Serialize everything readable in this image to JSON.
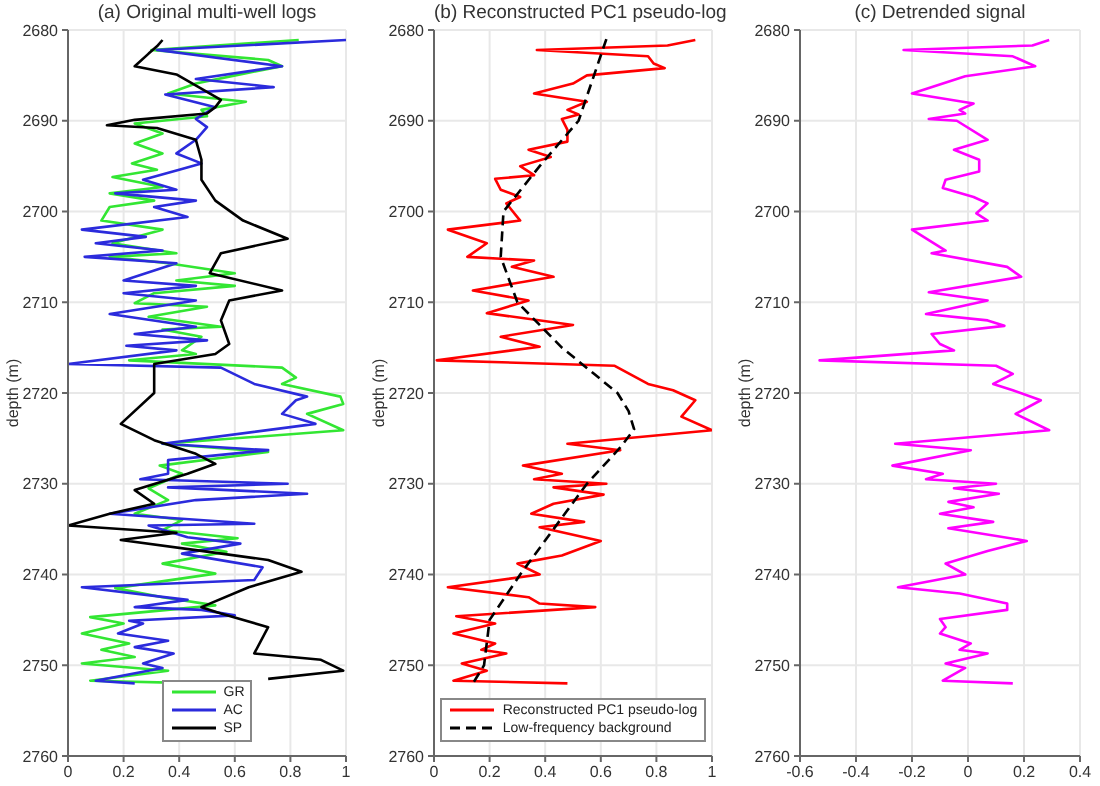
{
  "chart_data": [
    {
      "type": "line",
      "title": "(a) Original multi-well logs",
      "ylabel": "depth (m)",
      "orientation": "horizontal",
      "xlim": [
        0,
        1
      ],
      "xticks": [
        0,
        0.2,
        0.4,
        0.6,
        0.8,
        1
      ],
      "ylim": [
        2760,
        2680
      ],
      "yticks": [
        2680,
        2690,
        2700,
        2710,
        2720,
        2730,
        2740,
        2750,
        2760
      ],
      "grid": true,
      "legend": "bottom",
      "series": [
        {
          "name": "GR",
          "color": "#33e633",
          "x": [
            2681.1,
            2682.2,
            2683.3,
            2684,
            2684.7,
            2685.9,
            2687,
            2687.9,
            2688.8,
            2689.5,
            2690.3,
            2691.4,
            2692.5,
            2693.6,
            2694.7,
            2695.4,
            2696.2,
            2697.3,
            2698,
            2698.8,
            2699.5,
            2701,
            2702,
            2703.5,
            2704.6,
            2705,
            2705.7,
            2706.8,
            2707.6,
            2708.2,
            2709,
            2710.1,
            2710.5,
            2711.6,
            2712.7,
            2713,
            2713.8,
            2715.3,
            2715.7,
            2716.4,
            2717.2,
            2718.3,
            2719,
            2720.4,
            2721.2,
            2722.3,
            2724.1,
            2725.6,
            2726.5,
            2728,
            2728.9,
            2730.5,
            2731.8,
            2733.3,
            2734,
            2735.1,
            2736,
            2736.6,
            2737.5,
            2738.8,
            2739.9,
            2741.5,
            2742.5,
            2743.4,
            2744.7,
            2745.4,
            2746.5,
            2747.6,
            2748.3,
            2749.1,
            2749.8,
            2750.6,
            2751.7,
            2752
          ],
          "values": [
            0.83,
            0.3,
            0.72,
            0.77,
            0.65,
            0.46,
            0.36,
            0.64,
            0.48,
            0.5,
            0.24,
            0.34,
            0.24,
            0.34,
            0.23,
            0.32,
            0.16,
            0.34,
            0.15,
            0.31,
            0.15,
            0.12,
            0.34,
            0.16,
            0.39,
            0.15,
            0.36,
            0.6,
            0.39,
            0.6,
            0.31,
            0.24,
            0.5,
            0.29,
            0.55,
            0.34,
            0.48,
            0.41,
            0.46,
            0.22,
            0.77,
            0.82,
            0.77,
            0.98,
            0.99,
            0.86,
            0.99,
            0.34,
            0.72,
            0.33,
            0.41,
            0.29,
            0.36,
            0.24,
            0.41,
            0.34,
            0.61,
            0.41,
            0.57,
            0.34,
            0.53,
            0.17,
            0.34,
            0.53,
            0.08,
            0.2,
            0.05,
            0.22,
            0.12,
            0.24,
            0.05,
            0.36,
            0.08,
            0.48
          ]
        },
        {
          "name": "AC",
          "color": "#2b2bdc",
          "x": [
            2681.1,
            2682.2,
            2684,
            2685.4,
            2686.3,
            2687.1,
            2688.5,
            2689.8,
            2690.7,
            2692.1,
            2693.6,
            2694.7,
            2695.4,
            2696.5,
            2697.6,
            2698,
            2698.8,
            2699.5,
            2700.6,
            2702,
            2702.8,
            2703.5,
            2704.3,
            2705,
            2705.7,
            2707.6,
            2708.2,
            2709,
            2709.8,
            2711.3,
            2712.7,
            2713.5,
            2714.2,
            2714.8,
            2715.3,
            2716.8,
            2717.2,
            2719,
            2720.4,
            2720.8,
            2722.3,
            2723.4,
            2725.6,
            2726.3,
            2727.4,
            2728.9,
            2729.5,
            2730,
            2730.4,
            2731.1,
            2731.8,
            2733.3,
            2734.4,
            2734.6,
            2735.9,
            2736.6,
            2737.7,
            2739.2,
            2740.6,
            2741.4,
            2742.8,
            2743.6,
            2743.9,
            2744.5,
            2745.1,
            2745.4,
            2746.5,
            2747.3,
            2748,
            2748.7,
            2749.8,
            2750.3,
            2751.7,
            2752
          ],
          "values": [
            1,
            0.32,
            0.77,
            0.46,
            0.74,
            0.35,
            0.53,
            0.46,
            0.5,
            0.46,
            0.39,
            0.48,
            0.4,
            0.27,
            0.39,
            0.17,
            0.46,
            0.31,
            0.43,
            0.05,
            0.28,
            0.1,
            0.34,
            0.06,
            0.39,
            0.2,
            0.46,
            0.2,
            0.46,
            0.15,
            0.46,
            0.24,
            0.5,
            0.21,
            0.39,
            0,
            0.55,
            0.67,
            0.86,
            0.82,
            0.77,
            0.89,
            0.34,
            0.72,
            0.36,
            0.36,
            0.26,
            0.79,
            0.36,
            0.86,
            0.46,
            0.15,
            0.67,
            0.29,
            0.43,
            0.62,
            0.41,
            0.7,
            0.67,
            0.05,
            0.43,
            0.24,
            0.48,
            0.6,
            0.22,
            0.27,
            0.18,
            0.36,
            0.24,
            0.38,
            0.27,
            0.34,
            0.1,
            0.24
          ]
        },
        {
          "name": "SP",
          "color": "#000000",
          "x": [
            2681.1,
            2681.8,
            2682.6,
            2684,
            2684.9,
            2687.7,
            2688.5,
            2689.2,
            2689.9,
            2690.5,
            2690.8,
            2692.1,
            2694.3,
            2696.5,
            2698.8,
            2701,
            2703,
            2704.6,
            2706.8,
            2708.7,
            2709.8,
            2712,
            2714.6,
            2715.7,
            2716.8,
            2719.3,
            2720,
            2723.4,
            2725.2,
            2726.7,
            2727.8,
            2728.9,
            2730.7,
            2732.2,
            2733.3,
            2734.6,
            2735.4,
            2736.2,
            2737.4,
            2738.4,
            2739.7,
            2741.4,
            2743.6,
            2744.3,
            2745.8,
            2748.7,
            2749.4,
            2750.6,
            2751.5
          ],
          "values": [
            0.34,
            0.32,
            0.29,
            0.24,
            0.39,
            0.55,
            0.53,
            0.5,
            0.24,
            0.14,
            0.32,
            0.46,
            0.48,
            0.48,
            0.53,
            0.63,
            0.79,
            0.55,
            0.51,
            0.77,
            0.58,
            0.55,
            0.58,
            0.53,
            0.31,
            0.31,
            0.31,
            0.19,
            0.31,
            0.46,
            0.53,
            0.43,
            0.24,
            0.31,
            0.15,
            0,
            0.39,
            0.19,
            0.48,
            0.72,
            0.84,
            0.65,
            0.48,
            0.55,
            0.72,
            0.67,
            0.91,
            0.99,
            0.72
          ]
        }
      ]
    },
    {
      "type": "line",
      "title": "(b) Reconstructed PC1 pseudo-log",
      "ylabel": "depth (m)",
      "orientation": "horizontal",
      "xlim": [
        0,
        1
      ],
      "xticks": [
        0,
        0.2,
        0.4,
        0.6,
        0.8,
        1
      ],
      "ylim": [
        2760,
        2680
      ],
      "yticks": [
        2680,
        2690,
        2700,
        2710,
        2720,
        2730,
        2740,
        2750,
        2760
      ],
      "grid": true,
      "legend": "bottom",
      "series": [
        {
          "name": "Reconstructed PC1 pseudo-log",
          "color": "#ff0000",
          "line_style": "solid",
          "x": [
            2681.1,
            2681.7,
            2682.2,
            2682.9,
            2683.7,
            2684.2,
            2685,
            2685.9,
            2687,
            2687.9,
            2688.8,
            2689.3,
            2689.8,
            2691,
            2692.3,
            2693.2,
            2694,
            2695,
            2696,
            2696.4,
            2697.6,
            2698.4,
            2699.1,
            2701,
            2702,
            2703.5,
            2705,
            2705.4,
            2706.1,
            2707.2,
            2708.7,
            2709.8,
            2711.2,
            2712.5,
            2713.8,
            2714.9,
            2716.4,
            2717,
            2719,
            2719.7,
            2720.8,
            2722.6,
            2724.1,
            2725.6,
            2726.3,
            2728,
            2728.9,
            2729.5,
            2730,
            2730.4,
            2731.2,
            2732.2,
            2733.3,
            2734.2,
            2734.8,
            2736.3,
            2737.9,
            2738.8,
            2740,
            2741.4,
            2742.5,
            2743.2,
            2743.6,
            2744.6,
            2745.4,
            2746.5,
            2747.6,
            2748.3,
            2748.7,
            2749.8,
            2750.6,
            2751.7,
            2752
          ],
          "values": [
            0.94,
            0.84,
            0.37,
            0.77,
            0.79,
            0.83,
            0.55,
            0.5,
            0.36,
            0.55,
            0.48,
            0.52,
            0.46,
            0.48,
            0.48,
            0.34,
            0.42,
            0.31,
            0.36,
            0.22,
            0.24,
            0.31,
            0.26,
            0.31,
            0.05,
            0.19,
            0.12,
            0.36,
            0.28,
            0.43,
            0.14,
            0.34,
            0.19,
            0.5,
            0.24,
            0.38,
            0.01,
            0.65,
            0.77,
            0.86,
            0.94,
            0.89,
            1,
            0.48,
            0.67,
            0.32,
            0.46,
            0.36,
            0.62,
            0.43,
            0.61,
            0.43,
            0.35,
            0.54,
            0.38,
            0.6,
            0.46,
            0.3,
            0.38,
            0.05,
            0.34,
            0.38,
            0.58,
            0.08,
            0.22,
            0.07,
            0.22,
            0.17,
            0.26,
            0.1,
            0.19,
            0.07,
            0.48
          ]
        },
        {
          "name": "Low-frequency background",
          "color": "#000000",
          "line_style": "dashed",
          "x": [
            2681,
            2690,
            2695,
            2700,
            2705,
            2710,
            2715,
            2718,
            2720,
            2722,
            2724,
            2726,
            2730,
            2735,
            2740,
            2745,
            2750,
            2752
          ],
          "values": [
            0.62,
            0.52,
            0.38,
            0.25,
            0.24,
            0.3,
            0.46,
            0.58,
            0.66,
            0.7,
            0.72,
            0.67,
            0.55,
            0.43,
            0.31,
            0.2,
            0.18,
            0.14
          ]
        }
      ]
    },
    {
      "type": "line",
      "title": "(c) Detrended signal",
      "ylabel": "depth (m)",
      "orientation": "horizontal",
      "xlim": [
        -0.6,
        0.4
      ],
      "xticks": [
        -0.6,
        -0.4,
        -0.2,
        0,
        0.2,
        0.4
      ],
      "ylim": [
        2760,
        2680
      ],
      "yticks": [
        2680,
        2690,
        2700,
        2710,
        2720,
        2730,
        2740,
        2750,
        2760
      ],
      "grid": true,
      "series": [
        {
          "color": "#ff00ff",
          "x": [
            2681.1,
            2681.7,
            2682.2,
            2682.9,
            2684,
            2685.1,
            2687,
            2688.1,
            2688.8,
            2689.2,
            2689.8,
            2690,
            2692.1,
            2693.2,
            2694.3,
            2695.6,
            2696.5,
            2697.4,
            2698.4,
            2699.1,
            2700.2,
            2701,
            2702,
            2704.3,
            2704.6,
            2706.1,
            2707.2,
            2708.9,
            2709.8,
            2711.3,
            2712,
            2712.6,
            2713.5,
            2714.6,
            2715.3,
            2716.4,
            2717,
            2717.9,
            2719,
            2719.7,
            2720.8,
            2722.3,
            2724.1,
            2725.6,
            2726.3,
            2728,
            2728.9,
            2729.5,
            2730,
            2730.5,
            2731.1,
            2732,
            2732.6,
            2733.3,
            2734.2,
            2734.9,
            2736.3,
            2737.4,
            2738.8,
            2740,
            2741.4,
            2742.1,
            2743.2,
            2743.9,
            2744.9,
            2745.8,
            2746.5,
            2747.6,
            2748.3,
            2748.7,
            2749.8,
            2750.3,
            2751.7,
            2752
          ],
          "values": [
            0.29,
            0.23,
            -0.23,
            0.16,
            0.24,
            -0.01,
            -0.2,
            0.02,
            -0.03,
            -0.01,
            -0.14,
            -0.04,
            0.07,
            -0.05,
            0.04,
            0.04,
            -0.08,
            -0.09,
            0.02,
            0.07,
            0.03,
            0.07,
            -0.2,
            -0.08,
            -0.13,
            0.14,
            0.19,
            -0.14,
            0.07,
            -0.15,
            0.07,
            0.13,
            -0.13,
            -0.1,
            -0.05,
            -0.53,
            0.1,
            0.16,
            0.09,
            0.16,
            0.26,
            0.17,
            0.29,
            -0.26,
            0.01,
            -0.27,
            -0.09,
            -0.15,
            0.1,
            -0.05,
            0.11,
            -0.07,
            0.02,
            -0.1,
            0.09,
            -0.07,
            0.21,
            0.07,
            -0.08,
            -0.01,
            -0.25,
            -0.03,
            0.14,
            0.14,
            -0.1,
            -0.08,
            -0.1,
            0.01,
            -0.03,
            0.07,
            -0.08,
            -0.01,
            -0.09,
            0.16
          ]
        }
      ]
    }
  ]
}
